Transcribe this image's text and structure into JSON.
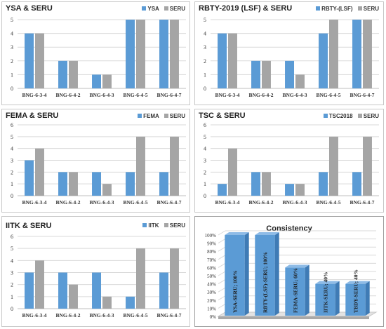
{
  "colors": {
    "blue": "#5b9bd5",
    "gray": "#a5a5a5",
    "grid": "#d9d9d9",
    "text": "#333333"
  },
  "chart_data": [
    {
      "type": "bar",
      "title": "YSA & SERU",
      "categories": [
        "BNG-6-3-4",
        "BNG-6-4-2",
        "BNG-6-4-3",
        "BNG-6-4-5",
        "BNG-6-4-7"
      ],
      "series": [
        {
          "name": "YSA",
          "values": [
            4,
            2,
            1,
            5,
            5
          ]
        },
        {
          "name": "SERU",
          "values": [
            4,
            2,
            1,
            5,
            5
          ]
        }
      ],
      "ylim": [
        0,
        5
      ],
      "yticks": [
        0,
        1,
        2,
        3,
        4,
        5
      ],
      "legend": "top-right",
      "grid": true
    },
    {
      "type": "bar",
      "title": "RBTY-2019 (LSF) & SERU",
      "categories": [
        "BNG-6-3-4",
        "BNG-6-4-2",
        "BNG-6-4-3",
        "BNG-6-4-5",
        "BNG-6-4-7"
      ],
      "series": [
        {
          "name": "RBTY-(LSF)",
          "values": [
            4,
            2,
            2,
            4,
            5
          ]
        },
        {
          "name": "SERU",
          "values": [
            4,
            2,
            1,
            5,
            5
          ]
        }
      ],
      "ylim": [
        0,
        5
      ],
      "yticks": [
        0,
        1,
        2,
        3,
        4,
        5
      ],
      "legend": "top-right",
      "grid": true
    },
    {
      "type": "bar",
      "title": "FEMA & SERU",
      "categories": [
        "BNG-6-3-4",
        "BNG-6-4-2",
        "BNG-6-4-3",
        "BNG-6-4-5",
        "BNG-6-4-7"
      ],
      "series": [
        {
          "name": "FEMA",
          "values": [
            3,
            2,
            2,
            2,
            2
          ]
        },
        {
          "name": "SERU",
          "values": [
            4,
            2,
            1,
            5,
            5
          ]
        }
      ],
      "ylim": [
        0,
        6
      ],
      "yticks": [
        0,
        1,
        2,
        3,
        4,
        5,
        6
      ],
      "legend": "top-right",
      "grid": true
    },
    {
      "type": "bar",
      "title": "TSC & SERU",
      "categories": [
        "BNG-6-3-4",
        "BNG-6-4-2",
        "BNG-6-4-3",
        "BNG-6-4-5",
        "BNG-6-4-7"
      ],
      "series": [
        {
          "name": "TSC2018",
          "values": [
            1,
            2,
            1,
            2,
            2
          ]
        },
        {
          "name": "SERU",
          "values": [
            4,
            2,
            1,
            5,
            5
          ]
        }
      ],
      "ylim": [
        0,
        6
      ],
      "yticks": [
        0,
        1,
        2,
        3,
        4,
        5,
        6
      ],
      "legend": "top-right",
      "grid": true
    },
    {
      "type": "bar",
      "title": "IITK & SERU",
      "categories": [
        "BNG-6-3-4",
        "BNG-6-4-2",
        "BNG-6-4-3",
        "BNG-6-4-5",
        "BNG-6-4-7"
      ],
      "series": [
        {
          "name": "IITK",
          "values": [
            3,
            3,
            3,
            1,
            3
          ]
        },
        {
          "name": "SERU",
          "values": [
            4,
            2,
            1,
            5,
            5
          ]
        }
      ],
      "ylim": [
        0,
        6
      ],
      "yticks": [
        0,
        1,
        2,
        3,
        4,
        5,
        6
      ],
      "legend": "top-right",
      "grid": true
    },
    {
      "type": "bar",
      "style": "3d",
      "title": "Consistency",
      "categories": [
        "YSA-SERU",
        "RBTY-(LSF)-SERU",
        "FEMA-SERU",
        "IITK-SERU",
        "TBDY-SERU"
      ],
      "values": [
        100,
        100,
        60,
        40,
        40
      ],
      "data_labels": [
        "YSA-SERU; 100%",
        "RBTY-(LSF)-SERU; 100%",
        "FEMA-SERU; 60%",
        "IITK-SERU; 40%",
        "TBDY-SERU; 40%"
      ],
      "ylim": [
        0,
        100
      ],
      "yticks": [
        "0%",
        "10%",
        "20%",
        "30%",
        "40%",
        "50%",
        "60%",
        "70%",
        "80%",
        "90%",
        "100%"
      ],
      "grid": true
    }
  ]
}
